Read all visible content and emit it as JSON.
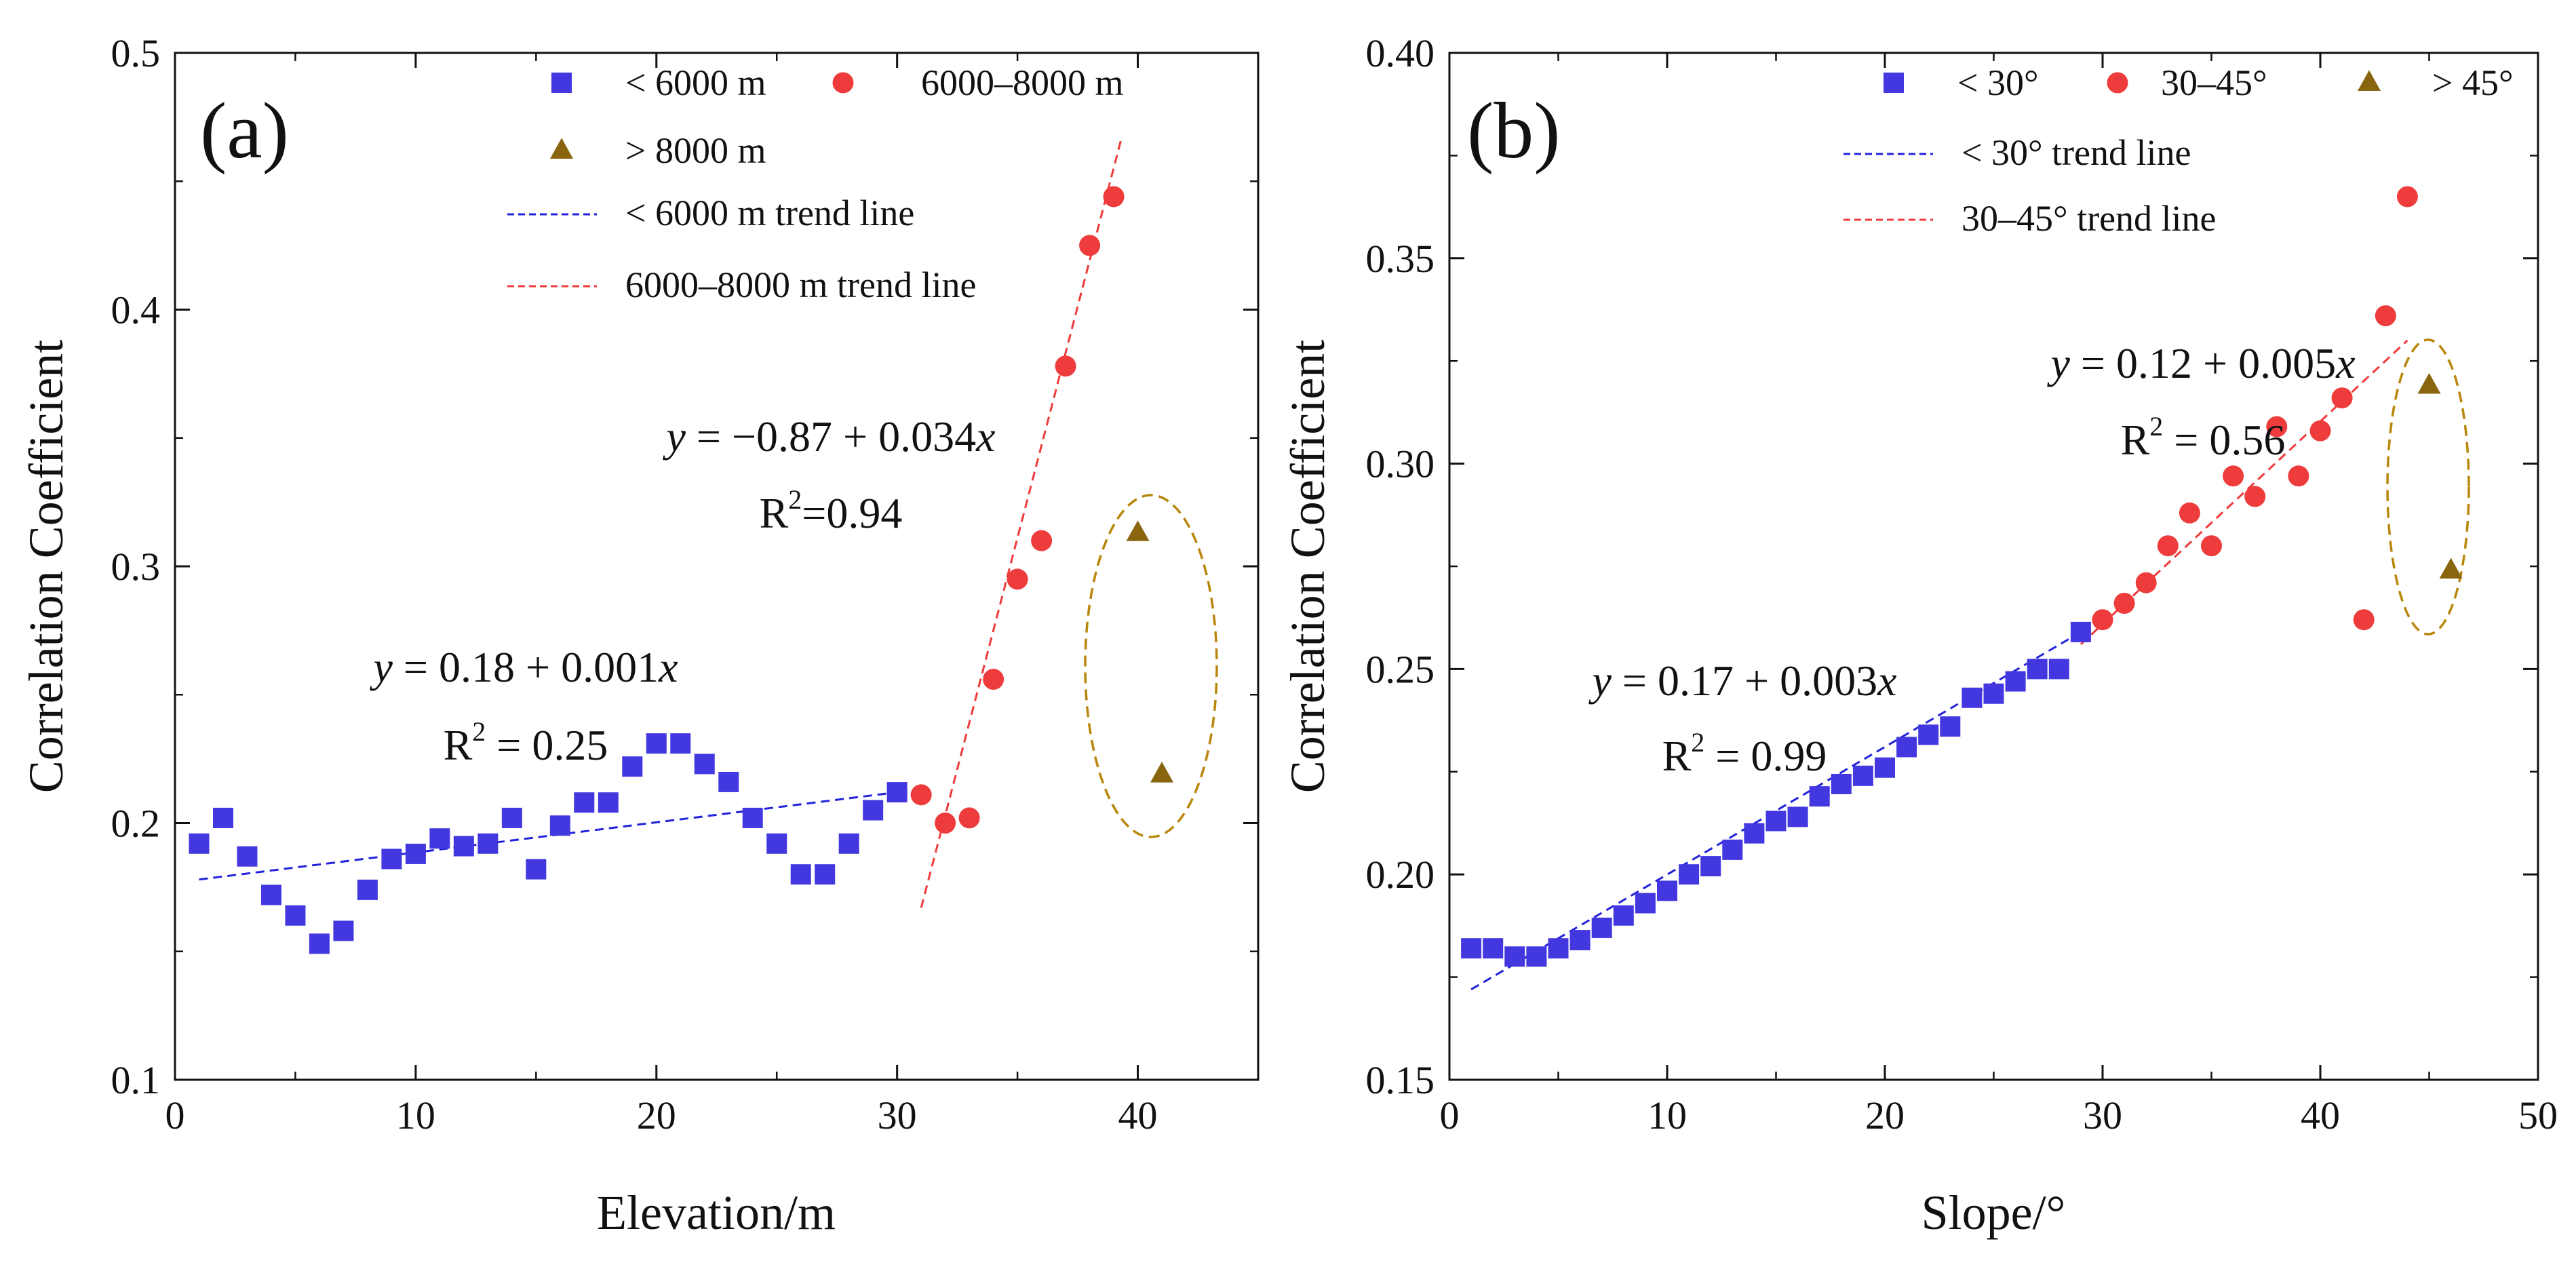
{
  "chart_data": [
    {
      "type": "scatter",
      "panel_label": "(a)",
      "xlabel": "Elevation/m",
      "ylabel": "Correlation Coefficient",
      "xlim": [
        0,
        45
      ],
      "ylim": [
        0.1,
        0.5
      ],
      "xticks": [
        "0",
        "10",
        "20",
        "30",
        "40"
      ],
      "yticks": [
        "0.1",
        "0.2",
        "0.3",
        "0.4",
        "0.5"
      ],
      "grid": false,
      "legend_position": "top-right",
      "series": [
        {
          "name": "< 6000 m",
          "marker": "square",
          "color": "#4338e0",
          "x": [
            1,
            2,
            3,
            4,
            5,
            6,
            7,
            8,
            9,
            10,
            11,
            12,
            13,
            14,
            15,
            16,
            17,
            18,
            19,
            20,
            21,
            22,
            23,
            24,
            25,
            26,
            27,
            28,
            29,
            30
          ],
          "y": [
            0.192,
            0.202,
            0.187,
            0.172,
            0.164,
            0.153,
            0.158,
            0.174,
            0.186,
            0.188,
            0.194,
            0.191,
            0.192,
            0.202,
            0.182,
            0.199,
            0.208,
            0.208,
            0.222,
            0.231,
            0.231,
            0.223,
            0.216,
            0.202,
            0.192,
            0.18,
            0.18,
            0.192,
            0.205,
            0.212
          ]
        },
        {
          "name": "6000–8000 m",
          "marker": "circle",
          "color": "#ee3b3b",
          "x": [
            31,
            32,
            33,
            34,
            35,
            36,
            37,
            38,
            39
          ],
          "y": [
            0.211,
            0.2,
            0.202,
            0.256,
            0.295,
            0.31,
            0.378,
            0.425,
            0.444
          ]
        },
        {
          "name": "> 8000 m",
          "marker": "triangle",
          "color": "#8a6510",
          "x": [
            40,
            41
          ],
          "y": [
            0.313,
            0.219
          ]
        }
      ],
      "trend_lines": [
        {
          "name": "< 6000 m trend line",
          "color": "#2222dd",
          "x": [
            1,
            30
          ],
          "y": [
            0.178,
            0.212
          ]
        },
        {
          "name": "6000–8000 m trend line",
          "color": "#ee3b3b",
          "x": [
            31,
            39.3
          ],
          "y": [
            0.167,
            0.466
          ]
        }
      ],
      "annotations": [
        {
          "series": "< 6000 m",
          "equation": [
            "y",
            " = 0.18 + 0.001",
            "x"
          ],
          "r2_prefix": "R",
          "r2_sup": "2",
          "r2_value": " = 0.25"
        },
        {
          "series": "6000–8000 m",
          "equation": [
            "y",
            " = −0.87 + 0.034",
            "x"
          ],
          "r2_prefix": "R",
          "r2_sup": "2",
          "r2_value": "=0.94"
        }
      ],
      "outlier_ellipse_color": "#b8860b"
    },
    {
      "type": "scatter",
      "panel_label": "(b)",
      "xlabel": "Slope/°",
      "ylabel": "Correlation Coefficient",
      "xlim": [
        0,
        50
      ],
      "ylim": [
        0.15,
        0.4
      ],
      "xticks": [
        "0",
        "10",
        "20",
        "30",
        "40",
        "50"
      ],
      "yticks": [
        "0.15",
        "0.20",
        "0.25",
        "0.30",
        "0.35",
        "0.40"
      ],
      "grid": false,
      "legend_position": "top-right",
      "series": [
        {
          "name": "< 30°",
          "marker": "square",
          "color": "#4338e0",
          "x": [
            1,
            2,
            3,
            4,
            5,
            6,
            7,
            8,
            9,
            10,
            11,
            12,
            13,
            14,
            15,
            16,
            17,
            18,
            19,
            20,
            21,
            22,
            23,
            24,
            25,
            26,
            27,
            28,
            29
          ],
          "y": [
            0.182,
            0.182,
            0.18,
            0.18,
            0.182,
            0.184,
            0.187,
            0.19,
            0.193,
            0.196,
            0.2,
            0.202,
            0.206,
            0.21,
            0.213,
            0.214,
            0.219,
            0.222,
            0.224,
            0.226,
            0.231,
            0.234,
            0.236,
            0.243,
            0.244,
            0.247,
            0.25,
            0.25,
            0.259
          ]
        },
        {
          "name": "30–45°",
          "marker": "circle",
          "color": "#ee3b3b",
          "x": [
            30,
            31,
            32,
            33,
            34,
            35,
            36,
            37,
            38,
            39,
            40,
            41,
            42,
            43,
            44
          ],
          "y": [
            0.262,
            0.266,
            0.271,
            0.28,
            0.288,
            0.28,
            0.297,
            0.292,
            0.309,
            0.297,
            0.308,
            0.316,
            0.262,
            0.336,
            0.365
          ]
        },
        {
          "name": "> 45°",
          "marker": "triangle",
          "color": "#8a6510",
          "x": [
            45,
            46
          ],
          "y": [
            0.319,
            0.274
          ]
        }
      ],
      "trend_lines": [
        {
          "name": "< 30° trend line",
          "color": "#2222dd",
          "x": [
            1,
            29
          ],
          "y": [
            0.172,
            0.259
          ]
        },
        {
          "name": "30–45° trend line",
          "color": "#ee3b3b",
          "x": [
            29,
            44
          ],
          "y": [
            0.256,
            0.33
          ]
        }
      ],
      "annotations": [
        {
          "series": "< 30°",
          "equation": [
            "y",
            " = 0.17 + 0.003",
            "x"
          ],
          "r2_prefix": "R",
          "r2_sup": "2",
          "r2_value": " = 0.99"
        },
        {
          "series": "30–45°",
          "equation": [
            "y",
            " = 0.12 + 0.005",
            "x"
          ],
          "r2_prefix": "R",
          "r2_sup": "2",
          "r2_value": " = 0.56"
        }
      ],
      "outlier_ellipse_color": "#b8860b"
    }
  ]
}
